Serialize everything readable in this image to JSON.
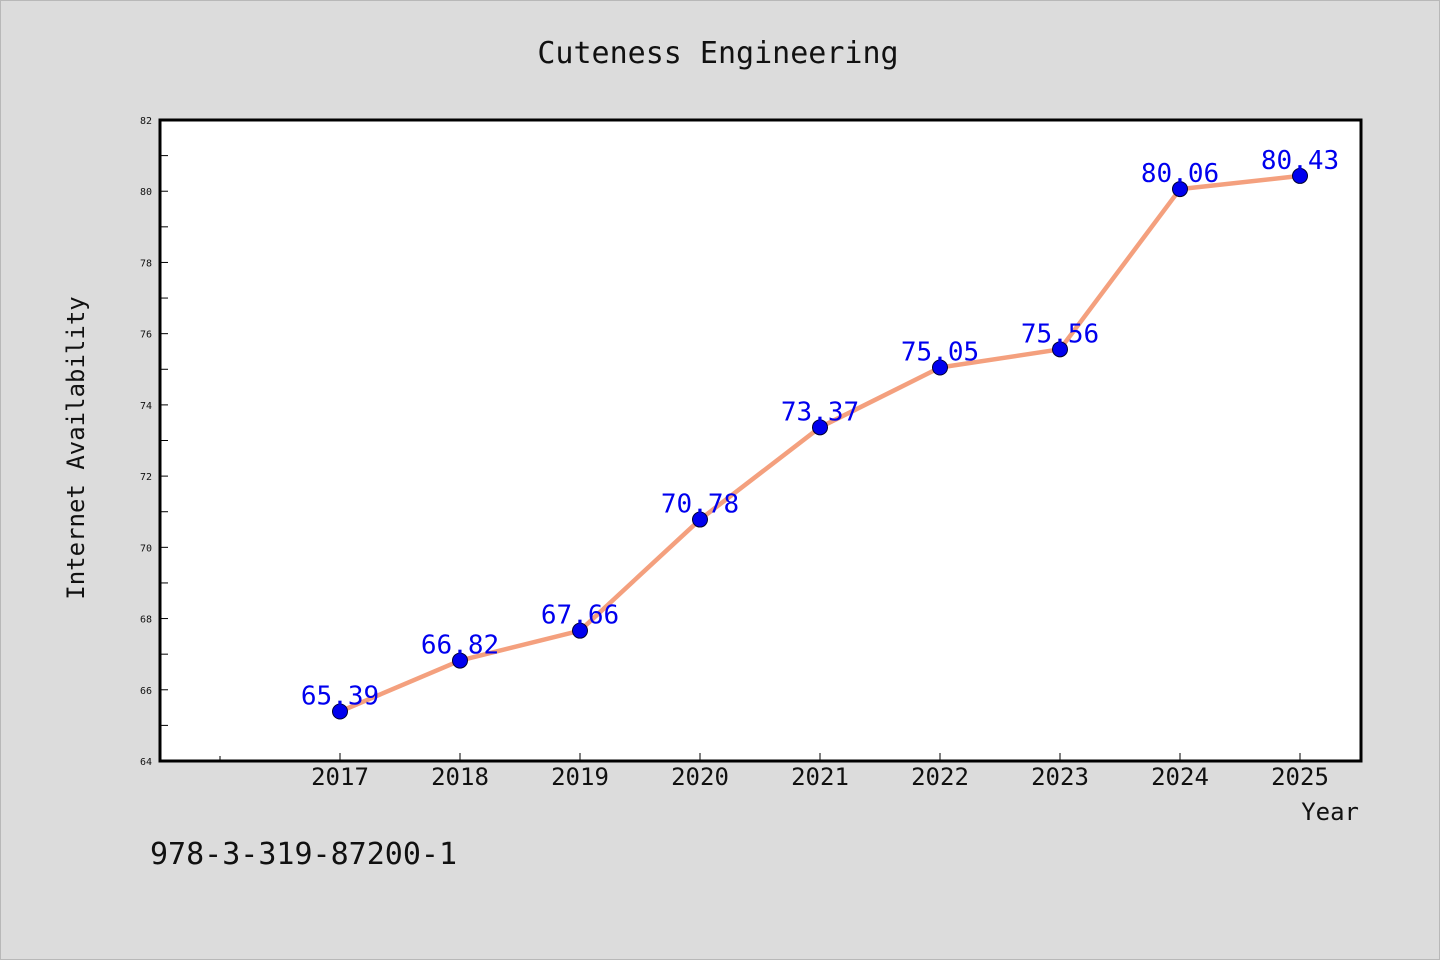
{
  "chart_data": {
    "type": "line",
    "title": "Cuteness Engineering",
    "xlabel": "Year",
    "ylabel": "Internet Availability",
    "categories": [
      "2017",
      "2018",
      "2019",
      "2020",
      "2021",
      "2022",
      "2023",
      "2024",
      "2025"
    ],
    "series": [
      {
        "values": [
          65.39,
          66.82,
          67.66,
          70.78,
          73.37,
          75.05,
          75.56,
          80.06,
          80.43
        ],
        "labels": [
          "65.39",
          "66.82",
          "67.66",
          "70.78",
          "73.37",
          "75.05",
          "75.56",
          "80.06",
          "80.43"
        ]
      }
    ],
    "ylim": [
      64,
      82
    ],
    "y_ticks": [
      "64",
      "66",
      "68",
      "70",
      "72",
      "74",
      "76",
      "78",
      "80",
      "82"
    ],
    "grid": false,
    "legend": "none"
  },
  "footer": {
    "isbn": "978-3-319-87200-1"
  },
  "colors": {
    "background": "#dcdcdc",
    "plot_area": "#ffffff",
    "line": "#f4a07e",
    "marker": "#0000ee",
    "data_label": "#0000ee"
  }
}
